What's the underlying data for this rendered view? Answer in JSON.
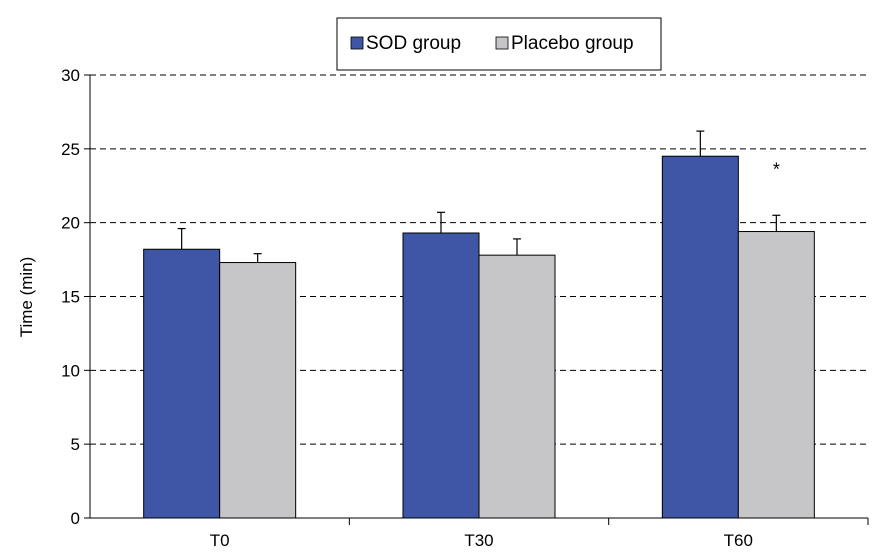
{
  "chart_data": {
    "type": "bar",
    "title": "",
    "xlabel": "",
    "ylabel": "Time (min)",
    "ylim": [
      0,
      30
    ],
    "yticks": [
      0,
      5,
      10,
      15,
      20,
      25,
      30
    ],
    "grid": "horizontal dashed",
    "legend_position": "top-center",
    "categories": [
      "T0",
      "T30",
      "T60"
    ],
    "series": [
      {
        "name": "SOD group",
        "color": "#3f56a6",
        "values": [
          18.2,
          19.3,
          24.5
        ],
        "error": [
          1.4,
          1.4,
          1.7
        ]
      },
      {
        "name": "Placebo group",
        "color": "#c6c6c8",
        "values": [
          17.3,
          17.8,
          19.4
        ],
        "error": [
          0.6,
          1.1,
          1.1
        ]
      }
    ],
    "annotations": [
      {
        "text": "*",
        "category": "T60",
        "series": "Placebo group"
      }
    ]
  }
}
